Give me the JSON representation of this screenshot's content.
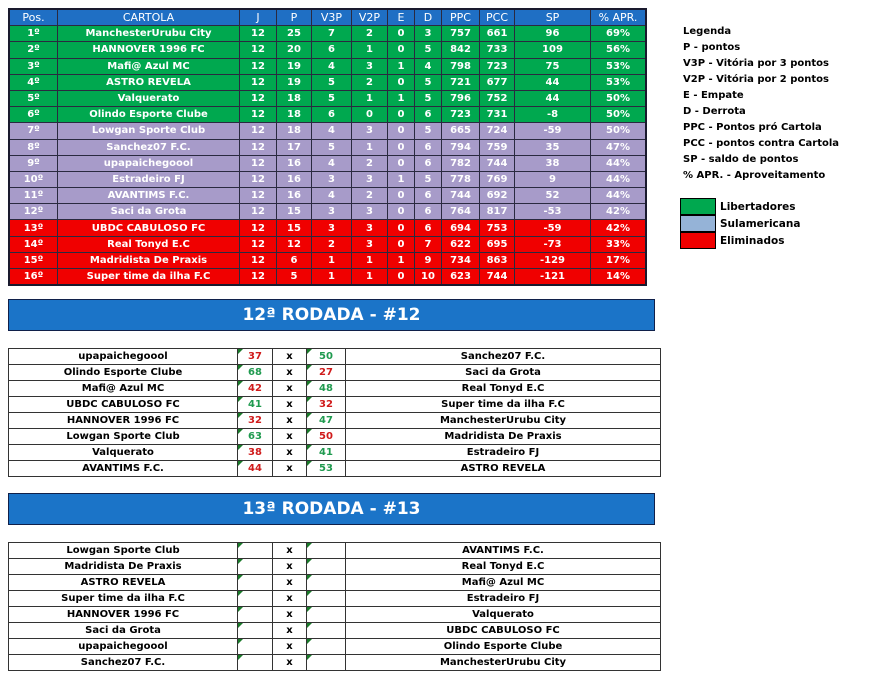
{
  "standings": {
    "headers": [
      "Pos.",
      "CARTOLA",
      "J",
      "P",
      "V3P",
      "V2P",
      "E",
      "D",
      "PPC",
      "PCC",
      "SP",
      "% APR."
    ],
    "rows": [
      {
        "zone": "lib",
        "cells": [
          "1º",
          "ManchesterUrubu City",
          "12",
          "25",
          "7",
          "2",
          "0",
          "3",
          "757",
          "661",
          "96",
          "69%"
        ]
      },
      {
        "zone": "lib",
        "cells": [
          "2º",
          "HANNOVER 1996 FC",
          "12",
          "20",
          "6",
          "1",
          "0",
          "5",
          "842",
          "733",
          "109",
          "56%"
        ]
      },
      {
        "zone": "lib",
        "cells": [
          "3º",
          "Mafi@ Azul MC",
          "12",
          "19",
          "4",
          "3",
          "1",
          "4",
          "798",
          "723",
          "75",
          "53%"
        ]
      },
      {
        "zone": "lib",
        "cells": [
          "4º",
          "ASTRO REVELA",
          "12",
          "19",
          "5",
          "2",
          "0",
          "5",
          "721",
          "677",
          "44",
          "53%"
        ]
      },
      {
        "zone": "lib",
        "cells": [
          "5º",
          "Valquerato",
          "12",
          "18",
          "5",
          "1",
          "1",
          "5",
          "796",
          "752",
          "44",
          "50%"
        ]
      },
      {
        "zone": "lib",
        "cells": [
          "6º",
          "Olindo Esporte Clube",
          "12",
          "18",
          "6",
          "0",
          "0",
          "6",
          "723",
          "731",
          "-8",
          "50%"
        ]
      },
      {
        "zone": "sul",
        "cells": [
          "7º",
          "Lowgan Sporte Club",
          "12",
          "18",
          "4",
          "3",
          "0",
          "5",
          "665",
          "724",
          "-59",
          "50%"
        ]
      },
      {
        "zone": "sul",
        "cells": [
          "8º",
          "Sanchez07 F.C.",
          "12",
          "17",
          "5",
          "1",
          "0",
          "6",
          "794",
          "759",
          "35",
          "47%"
        ]
      },
      {
        "zone": "sul",
        "cells": [
          "9º",
          "upapaichegoool",
          "12",
          "16",
          "4",
          "2",
          "0",
          "6",
          "782",
          "744",
          "38",
          "44%"
        ]
      },
      {
        "zone": "sul",
        "cells": [
          "10º",
          "Estradeiro FJ",
          "12",
          "16",
          "3",
          "3",
          "1",
          "5",
          "778",
          "769",
          "9",
          "44%"
        ]
      },
      {
        "zone": "sul",
        "cells": [
          "11º",
          "AVANTIMS F.C.",
          "12",
          "16",
          "4",
          "2",
          "0",
          "6",
          "744",
          "692",
          "52",
          "44%"
        ]
      },
      {
        "zone": "sul",
        "cells": [
          "12º",
          "Saci da Grota",
          "12",
          "15",
          "3",
          "3",
          "0",
          "6",
          "764",
          "817",
          "-53",
          "42%"
        ]
      },
      {
        "zone": "eli",
        "cells": [
          "13º",
          "UBDC CABULOSO FC",
          "12",
          "15",
          "3",
          "3",
          "0",
          "6",
          "694",
          "753",
          "-59",
          "42%"
        ]
      },
      {
        "zone": "eli",
        "cells": [
          "14º",
          "Real Tonyd E.C",
          "12",
          "12",
          "2",
          "3",
          "0",
          "7",
          "622",
          "695",
          "-73",
          "33%"
        ]
      },
      {
        "zone": "eli",
        "cells": [
          "15º",
          "Madridista De Praxis",
          "12",
          "6",
          "1",
          "1",
          "1",
          "9",
          "734",
          "863",
          "-129",
          "17%"
        ]
      },
      {
        "zone": "eli",
        "cells": [
          "16º",
          "Super time da ilha F.C",
          "12",
          "5",
          "1",
          "1",
          "0",
          "10",
          "623",
          "744",
          "-121",
          "14%"
        ]
      }
    ]
  },
  "legend": {
    "items": [
      "Legenda",
      "P - pontos",
      "V3P - Vitória por 3 pontos",
      "V2P - Vitória por 2 pontos",
      "E - Empate",
      "D - Derrota",
      "PPC - Pontos pró Cartola",
      "PCC - pontos contra Cartola",
      "SP - saldo de pontos",
      "% APR. - Aproveitamento"
    ],
    "zones": [
      {
        "label": "Libertadores",
        "color": "#00a84f"
      },
      {
        "label": "Sulamericana",
        "color": "#95b3d7"
      },
      {
        "label": "Eliminados",
        "color": "#f00000"
      }
    ]
  },
  "rounds": [
    {
      "title": "12ª RODADA - #12",
      "matches": [
        [
          "upapaichegoool",
          "37",
          "x",
          "50",
          "Sanchez07 F.C."
        ],
        [
          "Olindo Esporte Clube",
          "68",
          "x",
          "27",
          "Saci da Grota"
        ],
        [
          "Mafi@ Azul MC",
          "42",
          "x",
          "48",
          "Real Tonyd E.C"
        ],
        [
          "UBDC CABULOSO FC",
          "41",
          "x",
          "32",
          "Super time da ilha F.C"
        ],
        [
          "HANNOVER 1996 FC",
          "32",
          "x",
          "47",
          "ManchesterUrubu City"
        ],
        [
          "Lowgan Sporte Club",
          "63",
          "x",
          "50",
          "Madridista De Praxis"
        ],
        [
          "Valquerato",
          "38",
          "x",
          "41",
          "Estradeiro FJ"
        ],
        [
          "AVANTIMS F.C.",
          "44",
          "x",
          "53",
          "ASTRO REVELA"
        ]
      ]
    },
    {
      "title": "13ª RODADA - #13",
      "matches": [
        [
          "Lowgan Sporte Club",
          "",
          "x",
          "",
          "AVANTIMS F.C."
        ],
        [
          "Madridista De Praxis",
          "",
          "x",
          "",
          "Real Tonyd E.C"
        ],
        [
          "ASTRO REVELA",
          "",
          "x",
          "",
          "Mafi@ Azul MC"
        ],
        [
          "Super time da ilha F.C",
          "",
          "x",
          "",
          "Estradeiro FJ"
        ],
        [
          "HANNOVER 1996 FC",
          "",
          "x",
          "",
          "Valquerato"
        ],
        [
          "Saci da Grota",
          "",
          "x",
          "",
          "UBDC CABULOSO FC"
        ],
        [
          "upapaichegoool",
          "",
          "x",
          "",
          "Olindo Esporte Clube"
        ],
        [
          "Sanchez07 F.C.",
          "",
          "x",
          "",
          "ManchesterUrubu City"
        ]
      ]
    }
  ]
}
